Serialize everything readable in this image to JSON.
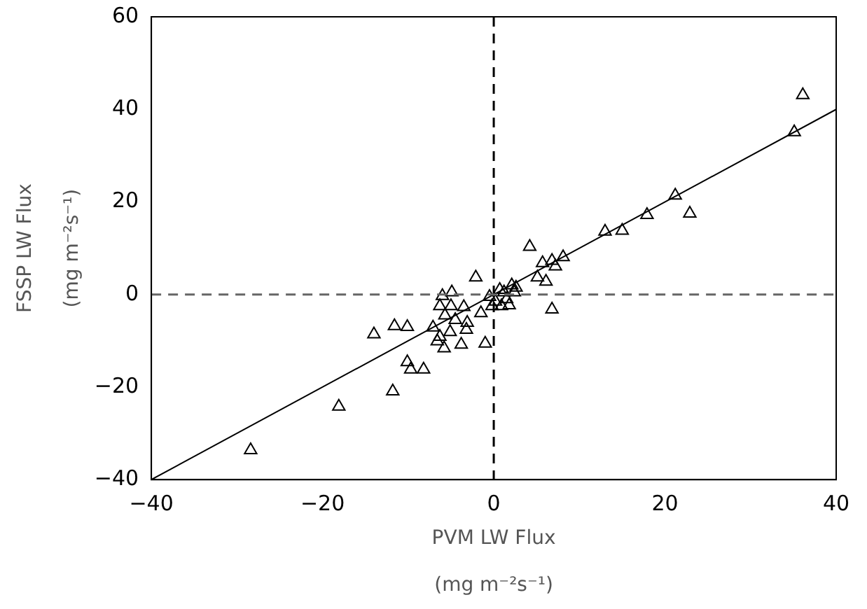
{
  "chart_data": {
    "type": "scatter",
    "xlabel": "PVM LW Flux\n\n(mg m⁻²s⁻¹)",
    "ylabel": "FSSP LW Flux\n\n(mg m⁻²s⁻¹)",
    "xlim": [
      -40,
      40
    ],
    "xticks": [
      -40,
      -20,
      0,
      20,
      40
    ],
    "ylim": [
      -40,
      60
    ],
    "yticks": [
      -40,
      -20,
      0,
      20,
      40,
      60
    ],
    "grid": false,
    "legend": false,
    "ref_lines": [
      {
        "axis": "x",
        "value": 0,
        "color": "#000000",
        "line_style": "dashed"
      },
      {
        "axis": "y",
        "value": 0,
        "color": "#666666",
        "line_style": "dashed"
      }
    ],
    "series": [
      {
        "type": "scatter",
        "color": "#000000",
        "marker": "triangle",
        "x": [
          36.1,
          35.1,
          21.2,
          22.9,
          17.9,
          15,
          13,
          4.2,
          8.1,
          6.8,
          5.7,
          7.2,
          5.1,
          6.1,
          6.8,
          1.8,
          -28.4,
          -18.1,
          -11.8,
          -10.1,
          -9.7,
          -8.2,
          -14,
          -11.6,
          -10.1,
          -7.1,
          -2.1,
          -1,
          -3.8,
          -5.8,
          -6.6,
          -6,
          -4.9,
          -6.3,
          -5,
          -3.5,
          -5.7,
          -4.5,
          -3.1,
          -3.2,
          -5.1,
          -6.3,
          -1.5,
          -0.5,
          0.2,
          0.9,
          1.2,
          2.1,
          2.4,
          1.5,
          0.7,
          2.6,
          -0.2
        ],
        "values": [
          43.1,
          35.1,
          21.4,
          17.5,
          17.2,
          13.8,
          13.6,
          10.3,
          8.1,
          7.3,
          6.8,
          6.1,
          3.7,
          2.8,
          -3.2,
          -2.3,
          -33.6,
          -24.2,
          -20.9,
          -14.6,
          -16.2,
          -16.2,
          -8.6,
          -6.8,
          -7,
          -7.1,
          3.7,
          -10.6,
          -10.8,
          -11.6,
          -10.1,
          -0.3,
          0.5,
          -2.5,
          -2.5,
          -2.7,
          -4.5,
          -5.5,
          -6.1,
          -7.6,
          -8.1,
          -9.1,
          -4,
          -0.5,
          -1.5,
          -2.5,
          0.5,
          2,
          0.5,
          -1,
          1,
          1.5,
          -2.5
        ]
      },
      {
        "type": "line",
        "color": "#000000",
        "marker": "none",
        "line_style": "solid",
        "x": [
          -40,
          40
        ],
        "values": [
          -40,
          40
        ]
      }
    ]
  }
}
